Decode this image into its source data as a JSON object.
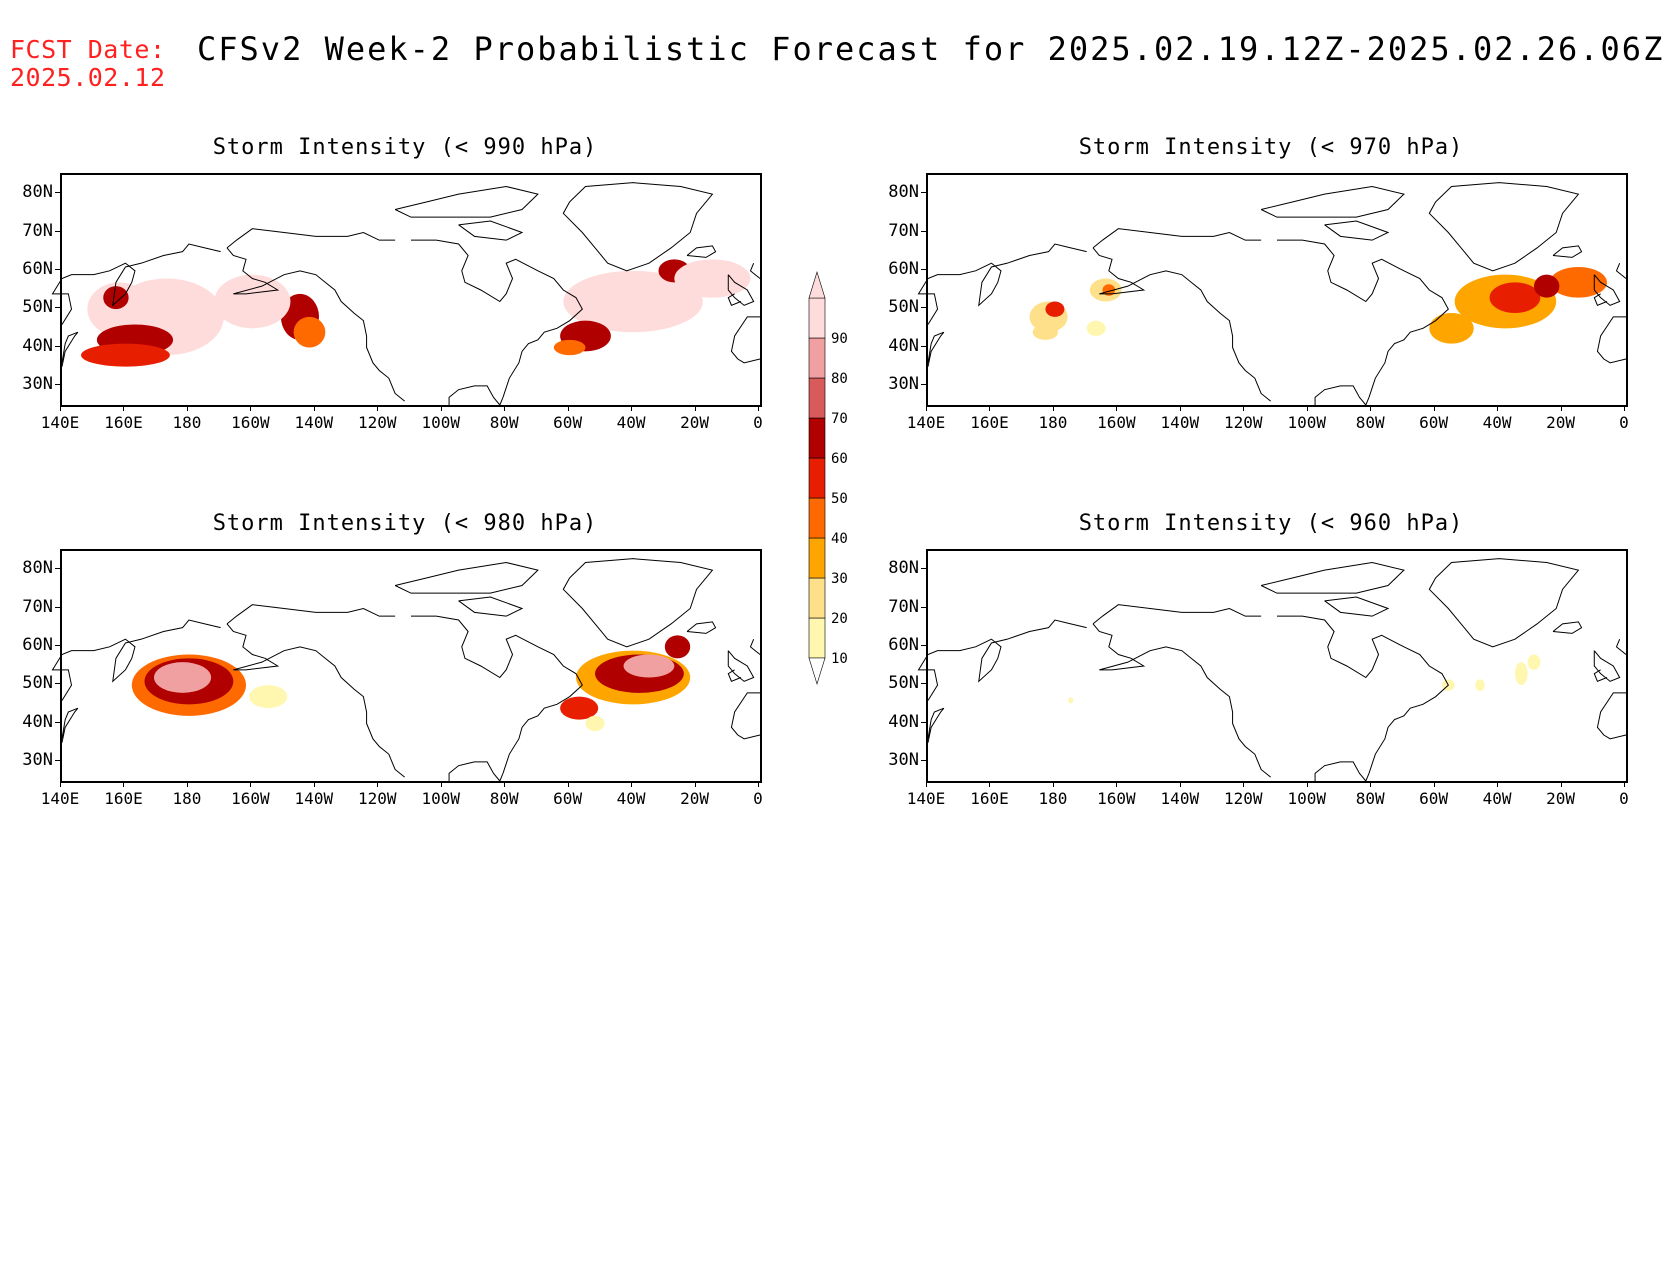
{
  "header": {
    "fcst_label": "FCST Date:",
    "fcst_date": "2025.02.12",
    "title": "CFSv2 Week-2 Probabilistic Forecast for 2025.02.19.12Z-2025.02.26.06Z"
  },
  "axes": {
    "lat_labels": [
      "80N",
      "70N",
      "60N",
      "50N",
      "40N",
      "30N"
    ],
    "lon_labels": [
      "140E",
      "160E",
      "180",
      "160W",
      "140W",
      "120W",
      "100W",
      "80W",
      "60W",
      "40W",
      "20W",
      "0"
    ]
  },
  "colorbar": {
    "levels": [
      "10",
      "20",
      "30",
      "40",
      "50",
      "60",
      "70",
      "80",
      "90"
    ],
    "colors": [
      "#fff7b0",
      "#ffe08a",
      "#ffa500",
      "#ff6a00",
      "#e81e00",
      "#b00000",
      "#d85a5a",
      "#f0a0a0",
      "#ffdcdc"
    ]
  },
  "panels": [
    {
      "title": "Storm Intensity (< 990 hPa)",
      "blobs": [
        {
          "lon": 173,
          "lat": 48,
          "rx": 18,
          "ry": 10,
          "level": 9
        },
        {
          "lon": 158,
          "lat": 50,
          "rx": 10,
          "ry": 7,
          "level": 9
        },
        {
          "lon": 163,
          "lat": 42,
          "rx": 12,
          "ry": 4,
          "level": 6
        },
        {
          "lon": 160,
          "lat": 38,
          "rx": 14,
          "ry": 3,
          "level": 5
        },
        {
          "lon": 215,
          "lat": 48,
          "rx": 6,
          "ry": 6,
          "level": 6
        },
        {
          "lon": 200,
          "lat": 52,
          "rx": 12,
          "ry": 7,
          "level": 9
        },
        {
          "lon": 218,
          "lat": 44,
          "rx": 5,
          "ry": 4,
          "level": 4
        },
        {
          "lon": 157,
          "lat": 53,
          "rx": 4,
          "ry": 3,
          "level": 6
        },
        {
          "lon": 320,
          "lat": 52,
          "rx": 22,
          "ry": 8,
          "level": 9
        },
        {
          "lon": 305,
          "lat": 43,
          "rx": 8,
          "ry": 4,
          "level": 6
        },
        {
          "lon": 300,
          "lat": 40,
          "rx": 5,
          "ry": 2,
          "level": 4
        },
        {
          "lon": 333,
          "lat": 60,
          "rx": 5,
          "ry": 3,
          "level": 6
        },
        {
          "lon": 345,
          "lat": 58,
          "rx": 12,
          "ry": 5,
          "level": 9
        }
      ]
    },
    {
      "title": "Storm Intensity (< 970 hPa)",
      "blobs": [
        {
          "lon": 178,
          "lat": 48,
          "rx": 6,
          "ry": 4,
          "level": 2
        },
        {
          "lon": 180,
          "lat": 50,
          "rx": 3,
          "ry": 2,
          "level": 5
        },
        {
          "lon": 177,
          "lat": 44,
          "rx": 4,
          "ry": 2,
          "level": 2
        },
        {
          "lon": 196,
          "lat": 55,
          "rx": 5,
          "ry": 3,
          "level": 2
        },
        {
          "lon": 197,
          "lat": 55,
          "rx": 2,
          "ry": 1.5,
          "level": 4
        },
        {
          "lon": 193,
          "lat": 45,
          "rx": 3,
          "ry": 2,
          "level": 1
        },
        {
          "lon": 322,
          "lat": 52,
          "rx": 16,
          "ry": 7,
          "level": 3
        },
        {
          "lon": 325,
          "lat": 53,
          "rx": 8,
          "ry": 4,
          "level": 5
        },
        {
          "lon": 345,
          "lat": 57,
          "rx": 9,
          "ry": 4,
          "level": 4
        },
        {
          "lon": 335,
          "lat": 56,
          "rx": 4,
          "ry": 3,
          "level": 6
        },
        {
          "lon": 305,
          "lat": 45,
          "rx": 7,
          "ry": 4,
          "level": 3
        }
      ]
    },
    {
      "title": "Storm Intensity (< 980 hPa)",
      "blobs": [
        {
          "lon": 180,
          "lat": 50,
          "rx": 18,
          "ry": 8,
          "level": 4
        },
        {
          "lon": 180,
          "lat": 51,
          "rx": 14,
          "ry": 6,
          "level": 6
        },
        {
          "lon": 178,
          "lat": 52,
          "rx": 9,
          "ry": 4,
          "level": 8
        },
        {
          "lon": 205,
          "lat": 47,
          "rx": 6,
          "ry": 3,
          "level": 1
        },
        {
          "lon": 320,
          "lat": 52,
          "rx": 18,
          "ry": 7,
          "level": 3
        },
        {
          "lon": 322,
          "lat": 53,
          "rx": 14,
          "ry": 5,
          "level": 6
        },
        {
          "lon": 325,
          "lat": 55,
          "rx": 8,
          "ry": 3,
          "level": 8
        },
        {
          "lon": 334,
          "lat": 60,
          "rx": 4,
          "ry": 3,
          "level": 6
        },
        {
          "lon": 303,
          "lat": 44,
          "rx": 6,
          "ry": 3,
          "level": 5
        },
        {
          "lon": 308,
          "lat": 40,
          "rx": 3,
          "ry": 2,
          "level": 1
        }
      ]
    },
    {
      "title": "Storm Intensity (< 960 hPa)",
      "blobs": [
        {
          "lon": 327,
          "lat": 53,
          "rx": 2,
          "ry": 3,
          "level": 1
        },
        {
          "lon": 331,
          "lat": 56,
          "rx": 2,
          "ry": 2,
          "level": 1
        },
        {
          "lon": 314,
          "lat": 50,
          "rx": 1.5,
          "ry": 1.5,
          "level": 1
        },
        {
          "lon": 304,
          "lat": 50,
          "rx": 2,
          "ry": 1.5,
          "level": 1
        },
        {
          "lon": 185,
          "lat": 46,
          "rx": 0.8,
          "ry": 0.8,
          "level": 1
        }
      ]
    }
  ],
  "map_extent": {
    "lon_min": 140,
    "lon_max": 360,
    "lat_min": 25,
    "lat_max": 85
  }
}
